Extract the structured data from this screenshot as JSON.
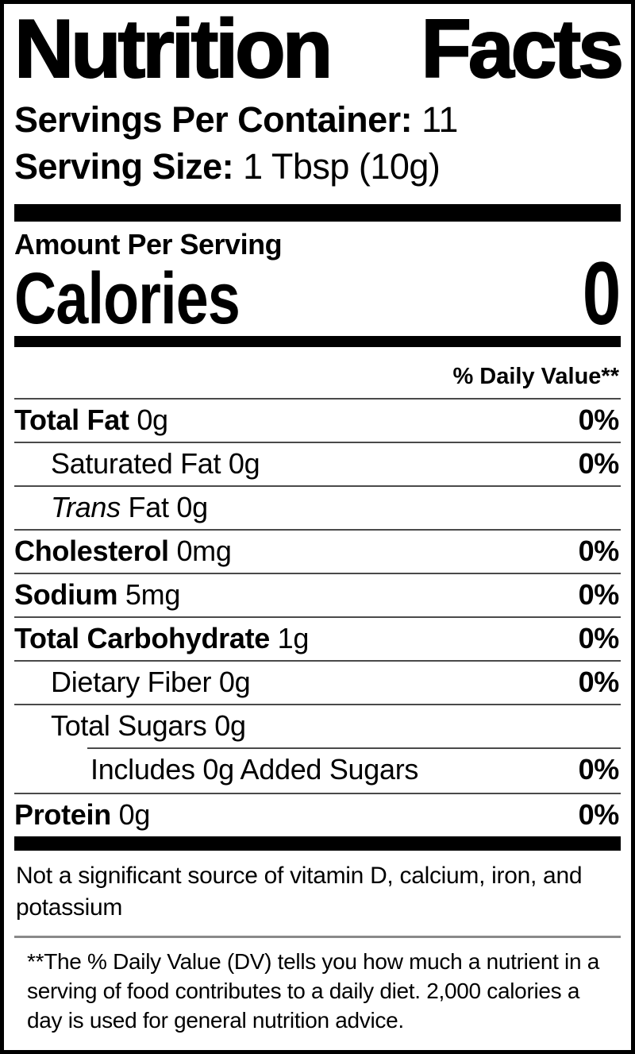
{
  "label": {
    "title": "Nutrition Facts",
    "servings_per_container_label": "Servings Per Container:",
    "servings_per_container_value": "11",
    "serving_size_label": "Serving Size:",
    "serving_size_value": "1 Tbsp (10g)",
    "amount_per_serving": "Amount Per Serving",
    "calories_label": "Calories",
    "calories_value": "0",
    "daily_value_header": "% Daily Value**",
    "rows": [
      {
        "label": "Total Fat",
        "style": "bold",
        "amount": "0g",
        "dv": "0%",
        "indent": 0
      },
      {
        "label": "Saturated Fat",
        "style": "regular",
        "amount": "0g",
        "dv": "0%",
        "indent": 1
      },
      {
        "label": "Trans",
        "style": "italic",
        "after": "Fat",
        "amount": "0g",
        "dv": "",
        "indent": 1
      },
      {
        "label": "Cholesterol",
        "style": "bold",
        "amount": "0mg",
        "dv": "0%",
        "indent": 0
      },
      {
        "label": "Sodium",
        "style": "bold",
        "amount": "5mg",
        "dv": "0%",
        "indent": 0
      },
      {
        "label": "Total Carbohydrate",
        "style": "bold",
        "amount": "1g",
        "dv": "0%",
        "indent": 0
      },
      {
        "label": "Dietary Fiber",
        "style": "regular",
        "amount": "0g",
        "dv": "0%",
        "indent": 1
      },
      {
        "label": "Total Sugars",
        "style": "regular",
        "amount": "0g",
        "dv": "",
        "indent": 1
      },
      {
        "label": "Includes 0g Added Sugars",
        "style": "regular",
        "amount": "",
        "dv": "0%",
        "indent": 2,
        "separator": "indented"
      },
      {
        "label": "Protein",
        "style": "bold",
        "amount": "0g",
        "dv": "0%",
        "indent": 0
      }
    ],
    "not_significant_lines": [
      "Not a significant source of vitamin D, calcium, iron, and",
      "potassium"
    ],
    "daily_value_footnote_lines": [
      "**The % Daily Value (DV) tells you how much a nutrient in a",
      "serving of food contributes to a daily diet. 2,000 calories a",
      "day is used for general nutrition advice."
    ]
  },
  "colors": {
    "text": "#000000",
    "background": "#ffffff",
    "thick_bar": "#000000",
    "row_rule": "#4a4a4a",
    "footnote_divider": "#8a8a8a"
  }
}
